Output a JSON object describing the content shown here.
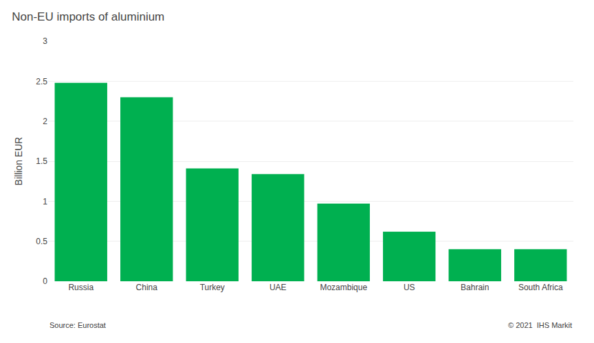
{
  "chart_data": {
    "type": "bar",
    "title": "Non-EU imports of aluminium",
    "categories": [
      "Russia",
      "China",
      "Turkey",
      "UAE",
      "Mozambique",
      "US",
      "Bahrain",
      "South Africa"
    ],
    "values": [
      2.48,
      2.3,
      1.41,
      1.34,
      0.97,
      0.62,
      0.4,
      0.4
    ],
    "color": "#00b050",
    "ylabel": "Billion EUR",
    "ylim": [
      0,
      3.0
    ],
    "yticks": [
      0,
      0.5,
      1,
      1.5,
      2,
      2.5,
      3
    ],
    "grid": true,
    "annotations": [
      "Source: Eurostat",
      "© 2021  IHS Markit"
    ]
  }
}
